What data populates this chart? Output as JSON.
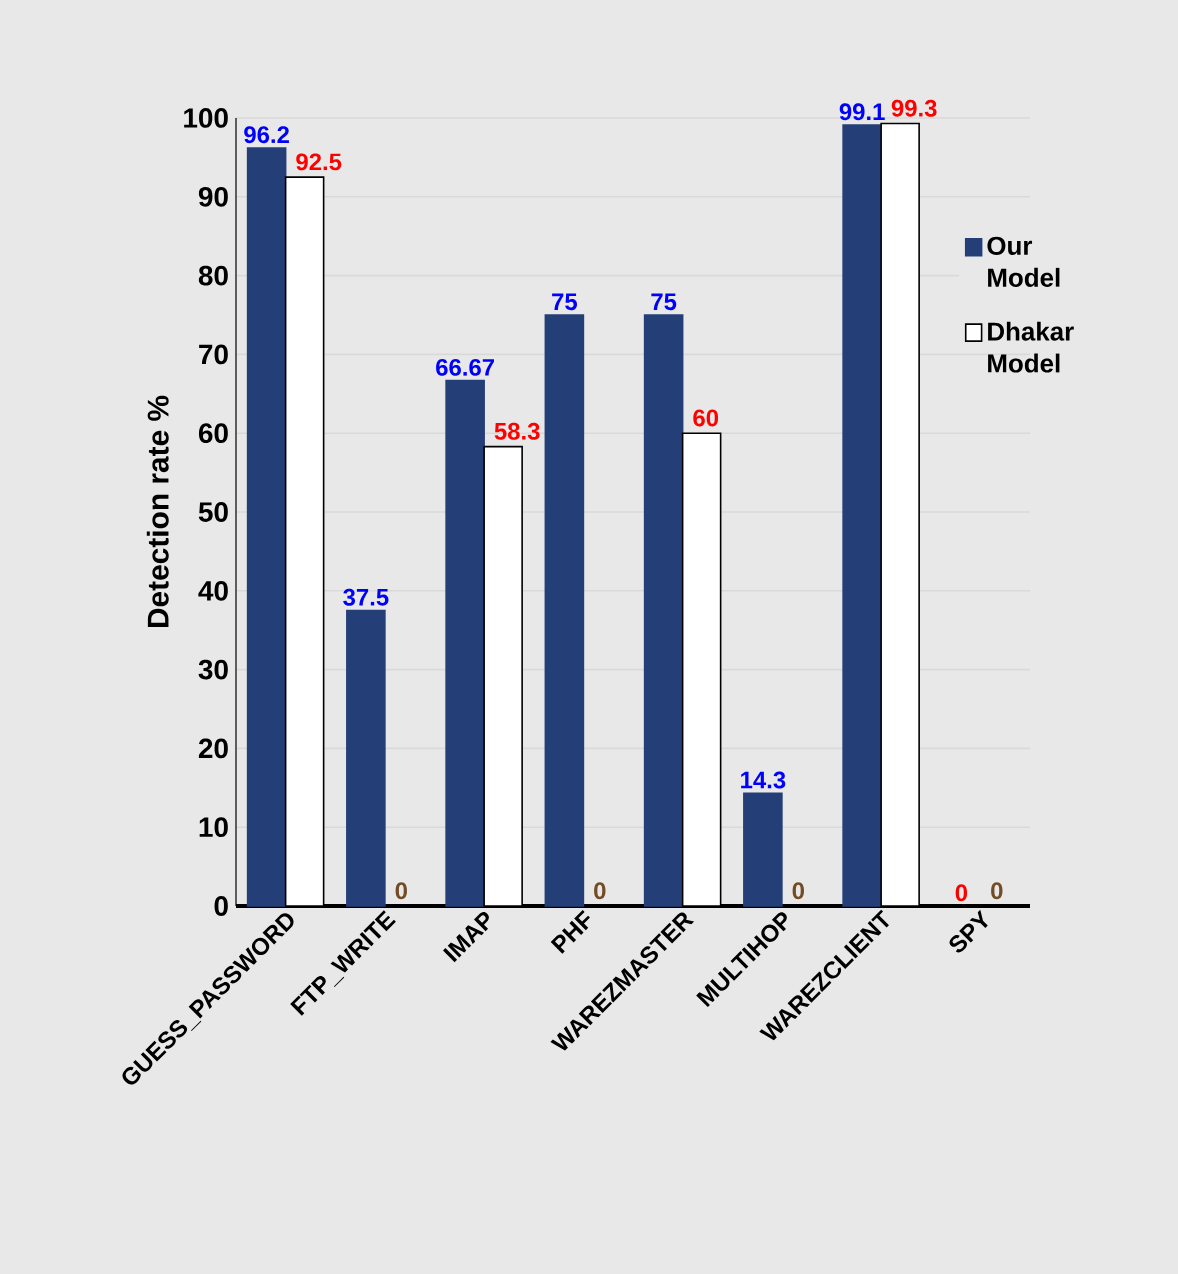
{
  "chart_data": {
    "type": "bar",
    "ylabel": "Detection rate %",
    "categories": [
      "GUESS_PASSWORD",
      "FTP_WRITE",
      "IMAP",
      "PHF",
      "WAREZMASTER",
      "MULTIHOP",
      "WAREZCLIENT",
      "SPY"
    ],
    "series": [
      {
        "name": "Our Model",
        "color": "#243f78",
        "values": [
          96.2,
          37.5,
          66.67,
          75,
          75,
          14.3,
          99.1,
          0
        ]
      },
      {
        "name": "Dhakar Model",
        "color": "#ffffff",
        "values": [
          92.5,
          0,
          58.3,
          0,
          60,
          0,
          99.3,
          0
        ]
      }
    ],
    "ylim": [
      0,
      100
    ],
    "yticks": [
      0,
      10,
      20,
      30,
      40,
      50,
      60,
      70,
      80,
      90,
      100
    ],
    "grid": "y",
    "legend": "right",
    "data_labels": true
  }
}
